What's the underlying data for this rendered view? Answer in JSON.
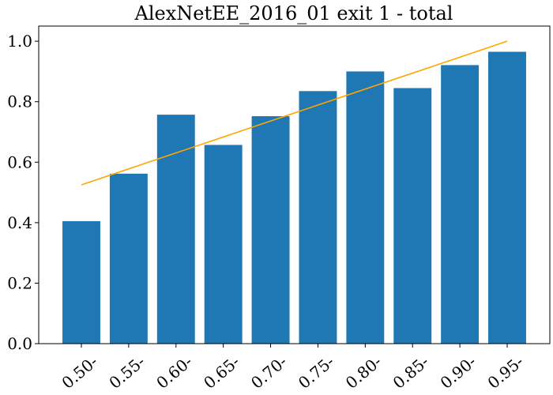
{
  "chart_data": {
    "type": "bar",
    "title": "AlexNetEE_2016_01 exit 1 - total",
    "xlabel": "",
    "ylabel": "",
    "categories": [
      "0.50-",
      "0.55-",
      "0.60-",
      "0.65-",
      "0.70-",
      "0.75-",
      "0.80-",
      "0.85-",
      "0.90-",
      "0.95-"
    ],
    "values": [
      0.405,
      0.562,
      0.757,
      0.657,
      0.752,
      0.835,
      0.9,
      0.845,
      0.921,
      0.965
    ],
    "ylim": [
      0.0,
      1.05
    ],
    "yticks": [
      "0.0",
      "0.2",
      "0.4",
      "0.6",
      "0.8",
      "1.0"
    ],
    "bar_color": "#1f77b4",
    "reference_line": {
      "color": "#ffa500",
      "x_start_category": "0.50-",
      "x_end_category": "0.95-",
      "y_start": 0.525,
      "y_end": 1.0
    },
    "grid": false,
    "legend": "none"
  }
}
